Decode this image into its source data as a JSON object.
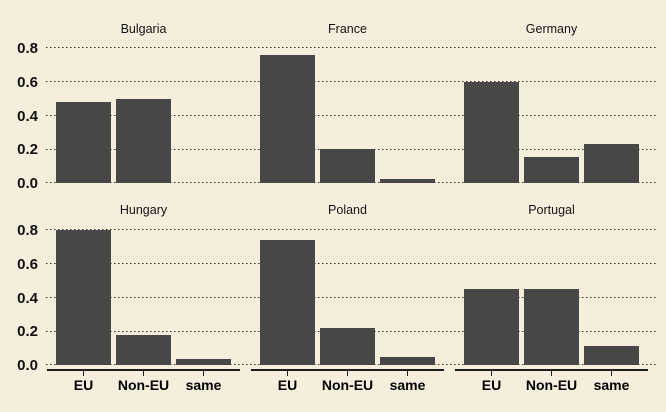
{
  "chart_data": {
    "type": "bar",
    "layout": "2x3-facets",
    "categories": [
      "EU",
      "Non-EU",
      "same"
    ],
    "y_tick_labels": [
      "0.8",
      "0.6",
      "0.4",
      "0.2",
      "0.0"
    ],
    "y_tick_values": [
      0.8,
      0.6,
      0.4,
      0.2,
      0.0
    ],
    "ylim": [
      0,
      0.84
    ],
    "grid": "dotted-horizontal",
    "legend": "none",
    "facets": [
      {
        "title": "Bulgaria",
        "values": [
          0.48,
          0.5,
          0
        ]
      },
      {
        "title": "France",
        "values": [
          0.76,
          0.2,
          0.025
        ]
      },
      {
        "title": "Germany",
        "values": [
          0.6,
          0.155,
          0.23
        ]
      },
      {
        "title": "Hungary",
        "values": [
          0.8,
          0.18,
          0.035
        ]
      },
      {
        "title": "Poland",
        "values": [
          0.74,
          0.22,
          0.045
        ]
      },
      {
        "title": "Portugal",
        "values": [
          0.45,
          0.45,
          0.11
        ]
      }
    ]
  },
  "colors": {
    "background": "#f5eedc",
    "bar": "#474747",
    "grid_dots": "#2e2b26",
    "axis_line": "#1c1c1c",
    "text": "#111111"
  }
}
